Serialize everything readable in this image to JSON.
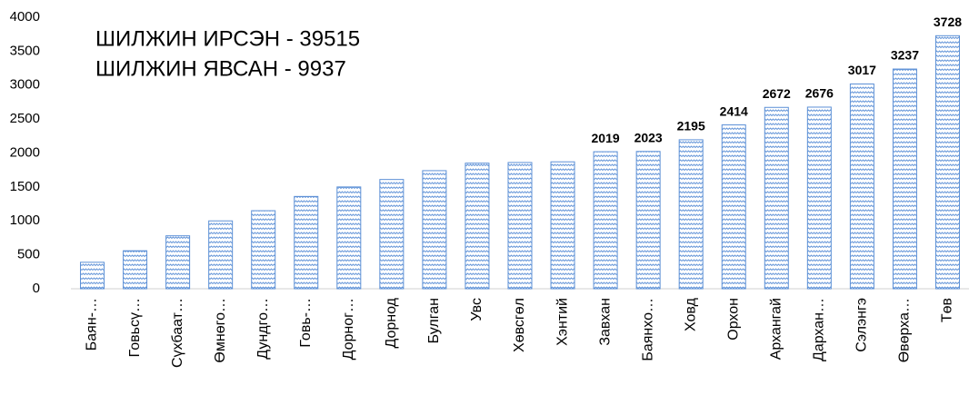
{
  "chart_data": {
    "type": "bar",
    "annotations": [
      "ШИЛЖИН ИРСЭН - 39515",
      "ШИЛЖИН ЯВСАН - 9937"
    ],
    "categories": [
      "Баян-…",
      "Говьсү…",
      "Сүхбаат…",
      "Өмнөго…",
      "Дундго…",
      "Говь-…",
      "Дорног…",
      "Дорнод",
      "Булган",
      "Увс",
      "Хөвсгөл",
      "Хэнтий",
      "Завхан",
      "Баянхо…",
      "Ховд",
      "Орхон",
      "Архангай",
      "Дархан…",
      "Сэлэнгэ",
      "Өвөрха…",
      "Төв"
    ],
    "values": [
      390,
      560,
      780,
      1000,
      1150,
      1360,
      1500,
      1610,
      1740,
      1850,
      1860,
      1870,
      2019,
      2023,
      2195,
      2414,
      2672,
      2676,
      3017,
      3237,
      3728
    ],
    "value_labels": [
      null,
      null,
      null,
      null,
      null,
      null,
      null,
      null,
      null,
      null,
      null,
      null,
      "2019",
      "2023",
      "2195",
      "2414",
      "2672",
      "2676",
      "3017",
      "3237",
      "3728"
    ],
    "color": "#5b8fd6",
    "ylim": [
      0,
      4000
    ],
    "yticks": [
      0,
      500,
      1000,
      1500,
      2000,
      2500,
      3000,
      3500,
      4000
    ],
    "grid": false
  }
}
